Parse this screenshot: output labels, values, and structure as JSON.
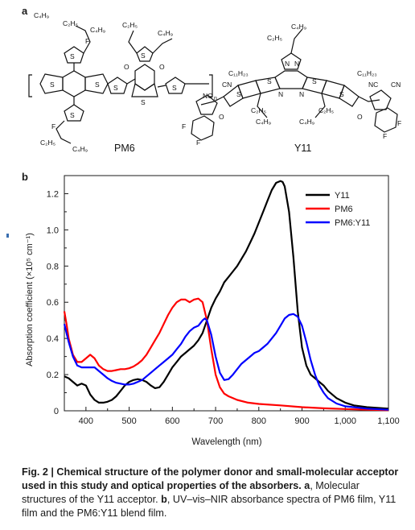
{
  "panel_a": {
    "letter": "a",
    "donor_label": "PM6",
    "acceptor_label": "Y11",
    "atoms": {
      "c4h9": "C₄H₉",
      "c2h5": "C₂H₅",
      "c11h23": "C₁₁H₂₃",
      "cn": "CN",
      "nc": "NC",
      "f": "F",
      "s": "S",
      "n": "N",
      "o": "O",
      "n_sub": "n"
    }
  },
  "panel_b": {
    "letter": "b"
  },
  "chart_data": {
    "type": "line",
    "title": "",
    "xlabel": "Wavelength (nm)",
    "ylabel": "Absorption coefficient (×10⁵ cm⁻¹)",
    "xlim": [
      350,
      1100
    ],
    "ylim": [
      0,
      1.3
    ],
    "xticks": [
      400,
      500,
      600,
      700,
      800,
      900,
      1000,
      1100
    ],
    "xtick_labels": [
      "400",
      "500",
      "600",
      "700",
      "800",
      "900",
      "1,000",
      "1,100"
    ],
    "yticks": [
      0,
      0.2,
      0.4,
      0.6,
      0.8,
      1.0,
      1.2
    ],
    "ytick_labels": [
      "0",
      "0.2",
      "0.4",
      "0.6",
      "0.8",
      "1.0",
      "1.2"
    ],
    "grid": false,
    "legend_position": "top-right",
    "series": [
      {
        "name": "Y11",
        "color": "#000000",
        "x": [
          350,
          360,
          370,
          380,
          390,
          400,
          410,
          420,
          430,
          440,
          450,
          460,
          470,
          480,
          490,
          500,
          510,
          520,
          530,
          540,
          550,
          560,
          570,
          580,
          590,
          600,
          610,
          620,
          630,
          640,
          650,
          660,
          670,
          680,
          690,
          700,
          710,
          720,
          730,
          740,
          750,
          760,
          770,
          780,
          790,
          800,
          810,
          820,
          830,
          840,
          850,
          855,
          860,
          870,
          880,
          890,
          900,
          910,
          920,
          930,
          940,
          950,
          960,
          980,
          1000,
          1020,
          1050,
          1080,
          1100
        ],
        "y": [
          0.19,
          0.18,
          0.16,
          0.14,
          0.15,
          0.14,
          0.09,
          0.06,
          0.045,
          0.045,
          0.05,
          0.06,
          0.08,
          0.11,
          0.14,
          0.16,
          0.17,
          0.175,
          0.17,
          0.16,
          0.14,
          0.125,
          0.13,
          0.16,
          0.2,
          0.24,
          0.27,
          0.3,
          0.32,
          0.34,
          0.36,
          0.39,
          0.43,
          0.5,
          0.57,
          0.62,
          0.66,
          0.71,
          0.74,
          0.77,
          0.8,
          0.84,
          0.88,
          0.93,
          0.98,
          1.04,
          1.1,
          1.16,
          1.22,
          1.26,
          1.27,
          1.265,
          1.24,
          1.1,
          0.85,
          0.55,
          0.35,
          0.25,
          0.2,
          0.18,
          0.16,
          0.14,
          0.11,
          0.07,
          0.045,
          0.03,
          0.02,
          0.015,
          0.012
        ]
      },
      {
        "name": "PM6",
        "color": "#ff0000",
        "x": [
          350,
          355,
          360,
          370,
          380,
          390,
          400,
          410,
          420,
          430,
          440,
          450,
          460,
          470,
          480,
          490,
          500,
          510,
          520,
          530,
          540,
          550,
          560,
          570,
          580,
          590,
          600,
          610,
          620,
          630,
          640,
          650,
          660,
          670,
          680,
          690,
          700,
          710,
          720,
          730,
          740,
          750,
          775,
          800,
          850,
          900,
          950,
          1000,
          1050,
          1100
        ],
        "y": [
          0.55,
          0.48,
          0.4,
          0.31,
          0.27,
          0.27,
          0.29,
          0.31,
          0.29,
          0.25,
          0.23,
          0.22,
          0.22,
          0.225,
          0.23,
          0.23,
          0.235,
          0.245,
          0.26,
          0.28,
          0.31,
          0.35,
          0.39,
          0.43,
          0.48,
          0.53,
          0.57,
          0.6,
          0.615,
          0.615,
          0.6,
          0.615,
          0.62,
          0.6,
          0.5,
          0.34,
          0.2,
          0.13,
          0.095,
          0.08,
          0.07,
          0.06,
          0.045,
          0.038,
          0.03,
          0.02,
          0.014,
          0.01,
          0.006,
          0.003
        ]
      },
      {
        "name": "PM6:Y11",
        "color": "#0000ff",
        "x": [
          350,
          360,
          370,
          380,
          390,
          400,
          410,
          420,
          430,
          440,
          450,
          460,
          470,
          480,
          490,
          500,
          510,
          520,
          530,
          540,
          550,
          560,
          570,
          580,
          590,
          600,
          610,
          620,
          630,
          640,
          650,
          660,
          670,
          675,
          680,
          690,
          700,
          710,
          720,
          730,
          740,
          750,
          760,
          770,
          780,
          790,
          800,
          810,
          820,
          830,
          840,
          850,
          860,
          870,
          880,
          890,
          900,
          910,
          920,
          930,
          940,
          950,
          960,
          980,
          1000,
          1050,
          1100
        ],
        "y": [
          0.48,
          0.38,
          0.3,
          0.25,
          0.24,
          0.24,
          0.24,
          0.24,
          0.22,
          0.2,
          0.18,
          0.165,
          0.155,
          0.15,
          0.145,
          0.145,
          0.15,
          0.16,
          0.17,
          0.19,
          0.21,
          0.23,
          0.25,
          0.27,
          0.29,
          0.31,
          0.34,
          0.37,
          0.41,
          0.44,
          0.46,
          0.47,
          0.5,
          0.51,
          0.5,
          0.42,
          0.3,
          0.21,
          0.17,
          0.175,
          0.2,
          0.23,
          0.26,
          0.28,
          0.3,
          0.32,
          0.33,
          0.35,
          0.37,
          0.4,
          0.43,
          0.47,
          0.51,
          0.53,
          0.535,
          0.52,
          0.47,
          0.38,
          0.28,
          0.2,
          0.14,
          0.1,
          0.07,
          0.04,
          0.025,
          0.012,
          0.006
        ]
      }
    ]
  },
  "caption": {
    "figure_label": "Fig. 2 |",
    "title": "Chemical structure of the polymer donor and small-molecular acceptor used in this study and optical properties of the absorbers.",
    "part_a_label": "a",
    "part_a_text": ", Molecular structures of the Y11 acceptor. ",
    "part_b_label": "b",
    "part_b_text": ", UV–vis–NIR absorbance spectra of PM6 film, Y11 film and the PM6:Y11 blend film."
  }
}
